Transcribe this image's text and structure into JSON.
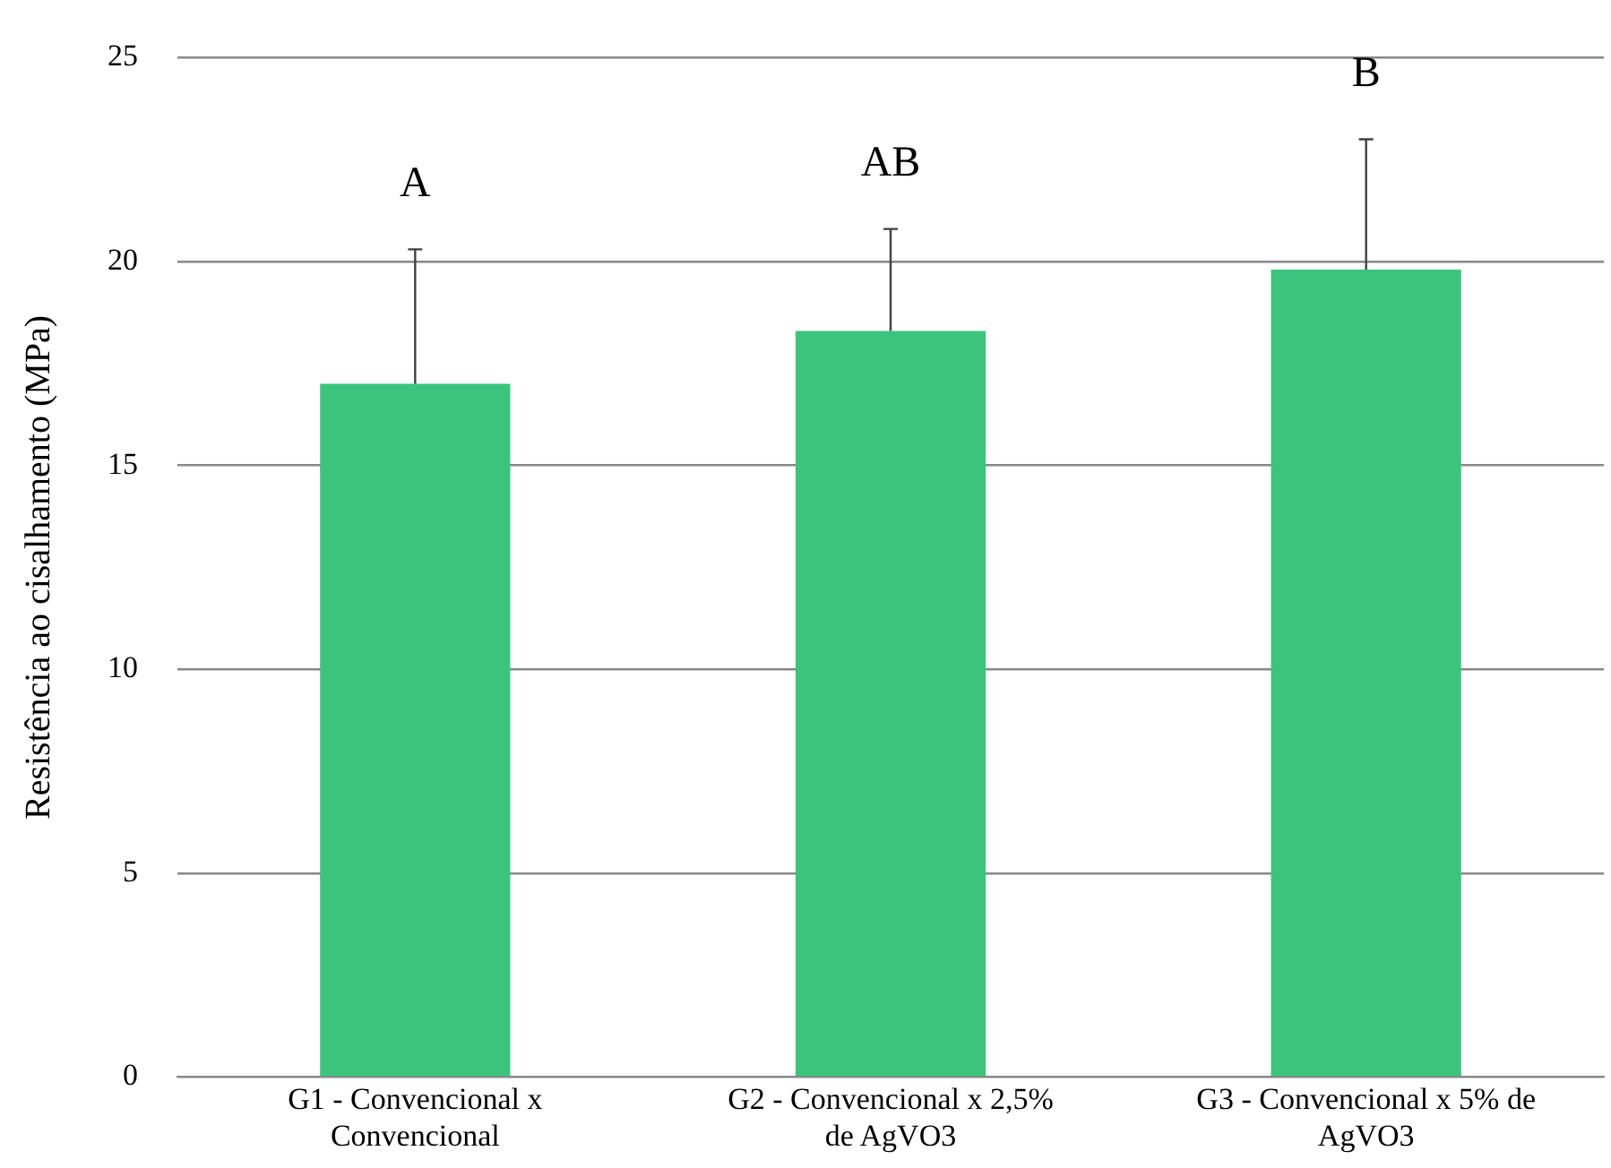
{
  "chart_data": {
    "type": "bar",
    "ylabel": "Resistência ao cisalhamento (MPa)",
    "categories": [
      "G1 - Convencional x Convencional",
      "G2 - Convencional x 2,5% de AgVO3",
      "G3 - Convencional x 5% de AgVO3"
    ],
    "values": [
      17.0,
      18.3,
      19.8
    ],
    "errors": [
      [
        17.0,
        20.3
      ],
      [
        18.3,
        20.8
      ],
      [
        19.8,
        23.0
      ]
    ],
    "color": "#3cc47c",
    "ylim": [
      0,
      25
    ],
    "yticks": [
      0,
      5,
      10,
      15,
      20,
      25
    ],
    "grid": "y",
    "legend": false,
    "annotations": [
      "A",
      "AB",
      "B"
    ]
  }
}
